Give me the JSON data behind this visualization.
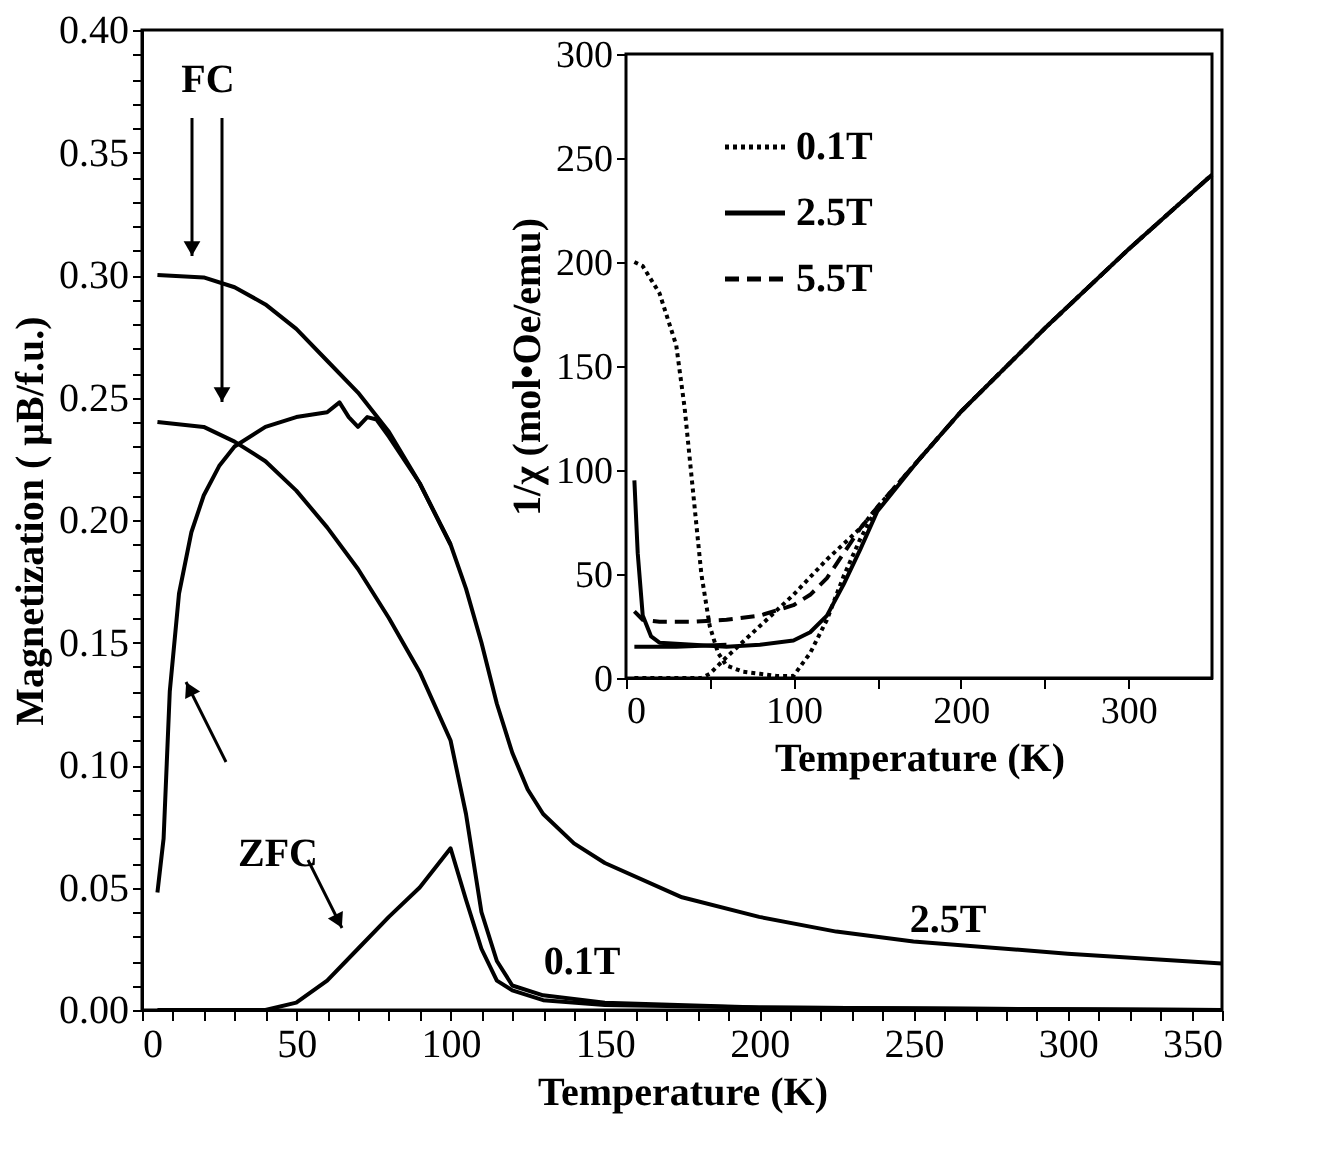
{
  "chart_data": [
    {
      "type": "line",
      "xlabel": "Temperature (K)",
      "ylabel": "Magnetization ( μB/f.u.)",
      "xlim": [
        0,
        350
      ],
      "ylim": [
        0,
        0.4
      ],
      "xticks": [
        0,
        {
          "value": 10,
          "label": null
        },
        {
          "value": 20,
          "label": null
        },
        {
          "value": 30,
          "label": null
        },
        {
          "value": 40,
          "label": null
        },
        50,
        {
          "value": 60,
          "label": null
        },
        {
          "value": 70,
          "label": null
        },
        {
          "value": 80,
          "label": null
        },
        {
          "value": 90,
          "label": null
        },
        100,
        {
          "value": 110,
          "label": null
        },
        {
          "value": 120,
          "label": null
        },
        {
          "value": 130,
          "label": null
        },
        {
          "value": 140,
          "label": null
        },
        150,
        {
          "value": 160,
          "label": null
        },
        {
          "value": 170,
          "label": null
        },
        {
          "value": 180,
          "label": null
        },
        {
          "value": 190,
          "label": null
        },
        200,
        {
          "value": 210,
          "label": null
        },
        {
          "value": 220,
          "label": null
        },
        {
          "value": 230,
          "label": null
        },
        {
          "value": 240,
          "label": null
        },
        250,
        {
          "value": 260,
          "label": null
        },
        {
          "value": 270,
          "label": null
        },
        {
          "value": 280,
          "label": null
        },
        {
          "value": 290,
          "label": null
        },
        300,
        {
          "value": 310,
          "label": null
        },
        {
          "value": 320,
          "label": null
        },
        {
          "value": 330,
          "label": null
        },
        {
          "value": 340,
          "label": null
        },
        350
      ],
      "yticks": [
        {
          "value": 0,
          "label": "0.00"
        },
        {
          "value": 0.01,
          "label": null
        },
        {
          "value": 0.02,
          "label": null
        },
        {
          "value": 0.03,
          "label": null
        },
        {
          "value": 0.04,
          "label": null
        },
        {
          "value": 0.05,
          "label": "0.05"
        },
        {
          "value": 0.06,
          "label": null
        },
        {
          "value": 0.07,
          "label": null
        },
        {
          "value": 0.08,
          "label": null
        },
        {
          "value": 0.09,
          "label": null
        },
        {
          "value": 0.1,
          "label": "0.10"
        },
        {
          "value": 0.11,
          "label": null
        },
        {
          "value": 0.12,
          "label": null
        },
        {
          "value": 0.13,
          "label": null
        },
        {
          "value": 0.14,
          "label": null
        },
        {
          "value": 0.15,
          "label": "0.15"
        },
        {
          "value": 0.16,
          "label": null
        },
        {
          "value": 0.17,
          "label": null
        },
        {
          "value": 0.18,
          "label": null
        },
        {
          "value": 0.19,
          "label": null
        },
        {
          "value": 0.2,
          "label": "0.20"
        },
        {
          "value": 0.21,
          "label": null
        },
        {
          "value": 0.22,
          "label": null
        },
        {
          "value": 0.23,
          "label": null
        },
        {
          "value": 0.24,
          "label": null
        },
        {
          "value": 0.25,
          "label": "0.25"
        },
        {
          "value": 0.26,
          "label": null
        },
        {
          "value": 0.27,
          "label": null
        },
        {
          "value": 0.28,
          "label": null
        },
        {
          "value": 0.29,
          "label": null
        },
        {
          "value": 0.3,
          "label": "0.30"
        },
        {
          "value": 0.31,
          "label": null
        },
        {
          "value": 0.32,
          "label": null
        },
        {
          "value": 0.33,
          "label": null
        },
        {
          "value": 0.34,
          "label": null
        },
        {
          "value": 0.35,
          "label": "0.35"
        },
        {
          "value": 0.36,
          "label": null
        },
        {
          "value": 0.37,
          "label": null
        },
        {
          "value": 0.38,
          "label": null
        },
        {
          "value": 0.39,
          "label": null
        },
        {
          "value": 0.4,
          "label": "0.40"
        }
      ],
      "grid": false,
      "legend": false,
      "line_style": "solid",
      "series": [
        {
          "color": "#000000",
          "x": [
            5,
            20,
            30,
            40,
            50,
            60,
            70,
            80,
            90,
            100,
            105,
            110,
            115,
            120,
            125,
            130,
            140,
            150,
            175,
            200,
            225,
            250,
            300,
            350
          ],
          "values": [
            0.3,
            0.299,
            0.295,
            0.288,
            0.278,
            0.265,
            0.252,
            0.236,
            0.215,
            0.19,
            0.172,
            0.15,
            0.125,
            0.105,
            0.09,
            0.08,
            0.068,
            0.06,
            0.046,
            0.038,
            0.032,
            0.028,
            0.023,
            0.019
          ]
        },
        {
          "color": "#000000",
          "x": [
            5,
            7,
            9,
            12,
            16,
            20,
            25,
            30,
            40,
            50,
            60,
            64,
            67,
            70,
            73,
            76,
            80,
            90,
            100
          ],
          "values": [
            0.048,
            0.07,
            0.13,
            0.17,
            0.195,
            0.21,
            0.222,
            0.23,
            0.238,
            0.242,
            0.244,
            0.248,
            0.242,
            0.238,
            0.242,
            0.241,
            0.234,
            0.215,
            0.19
          ]
        },
        {
          "color": "#000000",
          "x": [
            5,
            20,
            30,
            40,
            50,
            60,
            70,
            80,
            90,
            100,
            105,
            110,
            115,
            120,
            130,
            150,
            200,
            350
          ],
          "values": [
            0.24,
            0.238,
            0.232,
            0.224,
            0.212,
            0.197,
            0.18,
            0.16,
            0.138,
            0.11,
            0.08,
            0.04,
            0.02,
            0.01,
            0.006,
            0.003,
            0.001,
            0
          ]
        },
        {
          "color": "#000000",
          "x": [
            5,
            40,
            50,
            60,
            70,
            80,
            90,
            100,
            105,
            110,
            115,
            120,
            130,
            150,
            200,
            350
          ],
          "values": [
            0,
            0,
            0.003,
            0.012,
            0.025,
            0.038,
            0.05,
            0.066,
            0.045,
            0.025,
            0.012,
            0.008,
            0.004,
            0.002,
            0.001,
            0
          ]
        }
      ],
      "annotations": [
        "FC",
        "ZFC",
        "0.1T",
        "2.5T"
      ]
    },
    {
      "type": "line",
      "xlabel": "Temperature (K)",
      "ylabel": "1/χ (mol•Oe/emu)",
      "xlim": [
        0,
        350
      ],
      "ylim": [
        0,
        300
      ],
      "xticks": [
        0,
        {
          "value": 50,
          "label": null
        },
        100,
        {
          "value": 150,
          "label": null
        },
        200,
        {
          "value": 250,
          "label": null
        },
        300
      ],
      "yticks": [
        0,
        50,
        100,
        150,
        200,
        250,
        300
      ],
      "grid": false,
      "legend": "top left",
      "series": [
        {
          "name": "0.1T",
          "color": "#000000",
          "line_style": "dotted",
          "x": [
            5,
            10,
            20,
            30,
            35,
            40,
            45,
            50,
            55,
            60,
            70,
            80,
            90,
            100,
            110,
            120,
            130,
            140,
            150,
            175,
            200,
            250,
            300,
            350
          ],
          "values": [
            200,
            198,
            185,
            160,
            130,
            90,
            50,
            25,
            12,
            6,
            3,
            2,
            1,
            1,
            12,
            28,
            49,
            67,
            82,
            105,
            128,
            168,
            206,
            242
          ]
        },
        {
          "color": "#000000",
          "line_style": "dotted",
          "x": [
            5,
            45,
            50,
            60,
            80,
            100,
            120,
            140,
            150
          ],
          "values": [
            0,
            0,
            2,
            10,
            25,
            40,
            57,
            72,
            82
          ]
        },
        {
          "name": "2.5T",
          "color": "#000000",
          "line_style": "solid",
          "x": [
            5,
            7,
            10,
            15,
            20,
            40,
            60,
            80,
            100,
            110,
            120,
            130,
            140,
            150,
            175,
            200,
            250,
            300,
            350
          ],
          "values": [
            95,
            60,
            30,
            20,
            17,
            16,
            15,
            16,
            18,
            22,
            30,
            45,
            62,
            80,
            105,
            128,
            168,
            206,
            242
          ]
        },
        {
          "color": "#000000",
          "line_style": "solid",
          "x": [
            5,
            30,
            60
          ],
          "values": [
            15,
            15,
            16
          ]
        },
        {
          "name": "5.5T",
          "color": "#000000",
          "line_style": "dashed",
          "x": [
            5,
            10,
            20,
            40,
            60,
            80,
            100,
            110,
            120,
            130,
            140,
            150,
            175,
            200,
            250,
            300,
            350
          ],
          "values": [
            32,
            28,
            27,
            27,
            28,
            30,
            35,
            40,
            48,
            60,
            72,
            82,
            105,
            128,
            168,
            206,
            242
          ]
        }
      ]
    }
  ]
}
